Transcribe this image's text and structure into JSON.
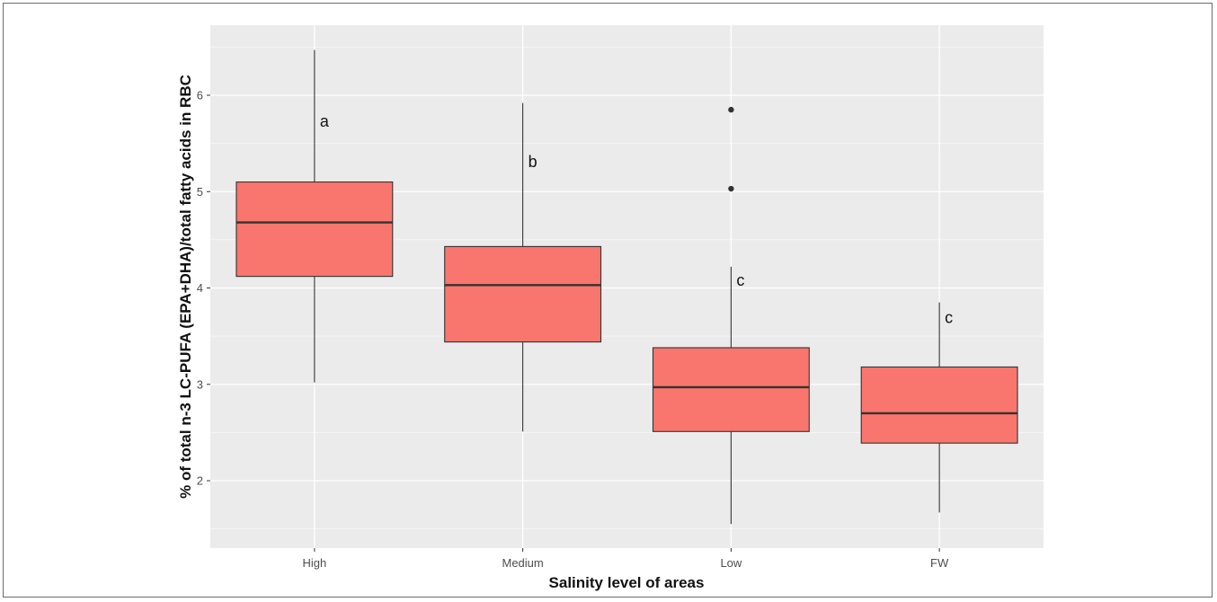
{
  "chart_data": {
    "type": "boxplot",
    "title": "",
    "xlabel": "Salinity level of areas",
    "ylabel": "% of total n-3 LC-PUFA (EPA+DHA)/total fatty acids in RBC",
    "ylim": [
      1.3,
      6.75
    ],
    "y_ticks": [
      "2",
      "3",
      "4",
      "5",
      "6"
    ],
    "categories": [
      "High",
      "Medium",
      "Low",
      "FW"
    ],
    "boxes": [
      {
        "category": "High",
        "whisker_low": 3.02,
        "q1": 4.12,
        "median": 4.68,
        "q3": 5.1,
        "whisker_high": 6.47,
        "outliers": [],
        "letter": "a",
        "letter_y": 5.73
      },
      {
        "category": "Medium",
        "whisker_low": 2.51,
        "q1": 3.44,
        "median": 4.03,
        "q3": 4.43,
        "whisker_high": 5.92,
        "outliers": [],
        "letter": "b",
        "letter_y": 5.31
      },
      {
        "category": "Low",
        "whisker_low": 1.55,
        "q1": 2.51,
        "median": 2.97,
        "q3": 3.38,
        "whisker_high": 4.22,
        "outliers": [
          5.85,
          5.03
        ],
        "letter": "c",
        "letter_y": 4.08
      },
      {
        "category": "FW",
        "whisker_low": 1.67,
        "q1": 2.39,
        "median": 2.7,
        "q3": 3.18,
        "whisker_high": 3.85,
        "outliers": [],
        "letter": "c",
        "letter_y": 3.69
      }
    ],
    "fill_color": "#F8766D",
    "border_color": "#333333",
    "panel_background": "#EBEBEB",
    "grid": true
  }
}
